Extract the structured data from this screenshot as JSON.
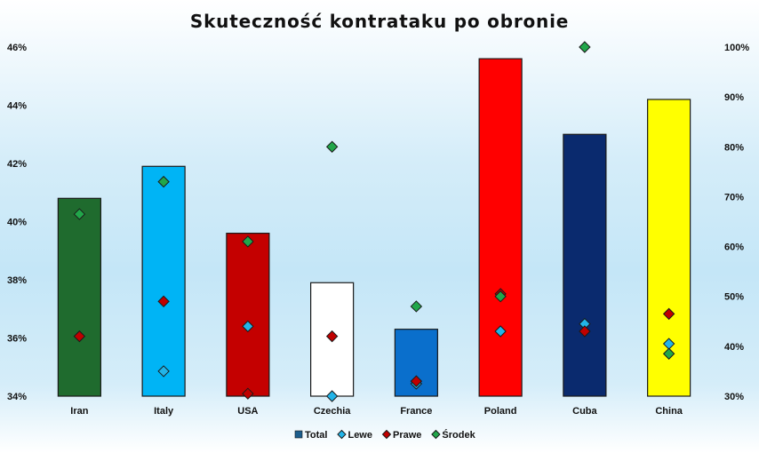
{
  "chart_data": {
    "type": "bar",
    "title": "Skuteczność kontrataku po obronie",
    "categories": [
      "Iran",
      "Italy",
      "USA",
      "Czechia",
      "France",
      "Poland",
      "Cuba",
      "China"
    ],
    "bar_colors": [
      "#1f6b2e",
      "#00b4f5",
      "#c40000",
      "#ffffff",
      "#0a6fcc",
      "#ff0000",
      "#0a2a6e",
      "#ffff00"
    ],
    "y_left": {
      "ylim": [
        34,
        46
      ],
      "ticks": [
        "34%",
        "36%",
        "38%",
        "40%",
        "42%",
        "44%",
        "46%"
      ]
    },
    "y_right": {
      "ylim": [
        30,
        100
      ],
      "ticks": [
        "30%",
        "40%",
        "50%",
        "60%",
        "70%",
        "80%",
        "90%",
        "100%"
      ]
    },
    "series": [
      {
        "name": "Total",
        "axis": "left",
        "kind": "bar",
        "values": [
          40.8,
          41.9,
          39.6,
          37.9,
          36.3,
          45.6,
          43.0,
          44.2
        ]
      },
      {
        "name": "Lewe",
        "axis": "right",
        "kind": "marker",
        "color": "#22b4e8",
        "values": [
          null,
          35,
          44,
          30,
          32.5,
          43,
          44.5,
          40.5
        ]
      },
      {
        "name": "Prawe",
        "axis": "right",
        "kind": "marker",
        "color": "#c00000",
        "values": [
          42,
          49,
          30.5,
          42,
          33,
          50.5,
          43,
          46.5
        ]
      },
      {
        "name": "Środek",
        "axis": "right",
        "kind": "marker",
        "color": "#21a64a",
        "values": [
          66.5,
          73,
          61,
          80,
          48,
          50,
          100,
          38.5
        ]
      }
    ],
    "legend": {
      "position": "bottom",
      "entries": [
        "Total",
        "Lewe",
        "Prawe",
        "Środek"
      ]
    },
    "grid": false
  }
}
